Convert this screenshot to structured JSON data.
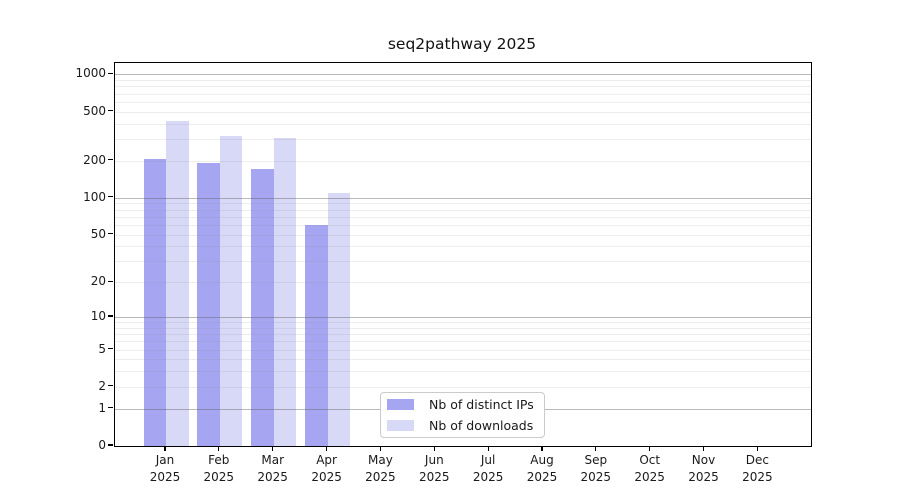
{
  "title": "seq2pathway 2025",
  "chart_data": {
    "type": "bar",
    "title": "seq2pathway 2025",
    "y_scale": "log10(1+y)",
    "ylim": [
      0,
      1000
    ],
    "grid": true,
    "legend_position": "inside lower-center",
    "year": "2025",
    "categories": [
      "Jan",
      "Feb",
      "Mar",
      "Apr",
      "May",
      "Jun",
      "Jul",
      "Aug",
      "Sep",
      "Oct",
      "Nov",
      "Dec"
    ],
    "yticks": [
      1000,
      500,
      200,
      100,
      50,
      20,
      10,
      5,
      2,
      1,
      0
    ],
    "yticks_major_grid": [
      1000,
      100,
      10,
      1
    ],
    "yticks_minor_grid": [
      2,
      3,
      4,
      5,
      6,
      7,
      8,
      9,
      20,
      30,
      40,
      50,
      60,
      70,
      80,
      90,
      200,
      300,
      400,
      500,
      600,
      700,
      800,
      900
    ],
    "series": [
      {
        "key": "ips",
        "name": "Nb of distinct IPs",
        "color": "#a5a5f1",
        "values": [
          205,
          190,
          170,
          60,
          null,
          null,
          null,
          null,
          null,
          null,
          null,
          null
        ]
      },
      {
        "key": "downloads",
        "name": "Nb of downloads",
        "color": "#d8d8f7",
        "values": [
          420,
          315,
          305,
          110,
          null,
          null,
          null,
          null,
          null,
          null,
          null,
          null
        ]
      }
    ]
  },
  "legend": {
    "items": [
      {
        "label": "Nb of distinct IPs",
        "color": "#a5a5f1"
      },
      {
        "label": "Nb of downloads",
        "color": "#d8d8f7"
      }
    ]
  }
}
